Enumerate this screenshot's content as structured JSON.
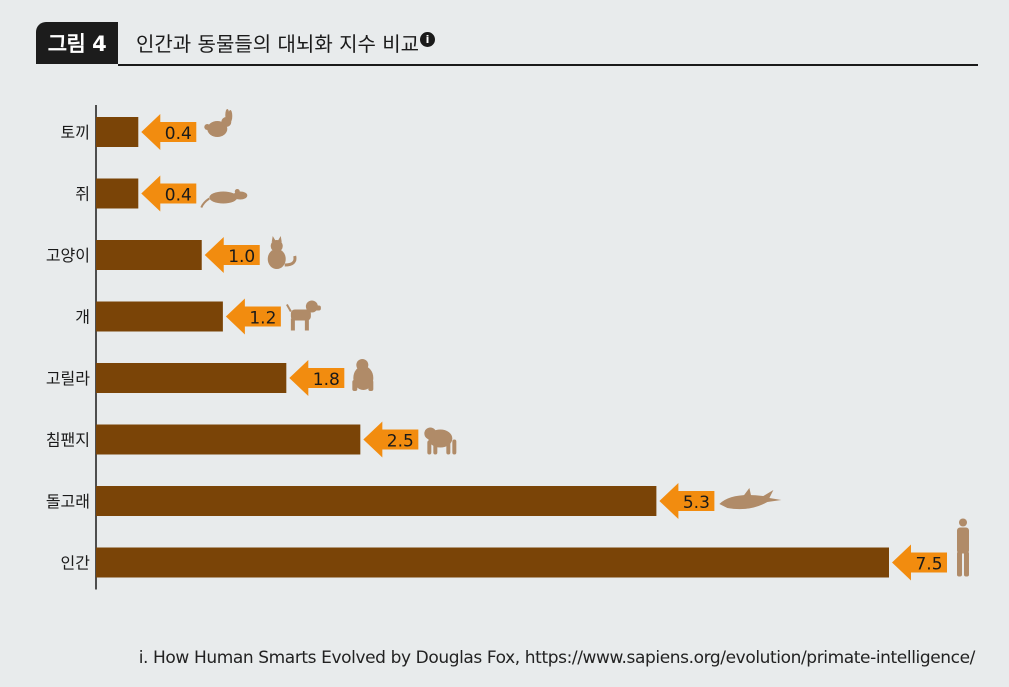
{
  "header": {
    "badge": "그림 4",
    "title": "인간과 동물들의 대뇌화 지수 비교",
    "note_marker": "i"
  },
  "chart_data": {
    "type": "bar",
    "orientation": "horizontal",
    "categories": [
      "토끼",
      "쥐",
      "고양이",
      "개",
      "고릴라",
      "침팬지",
      "돌고래",
      "인간"
    ],
    "values": [
      0.4,
      0.4,
      1.0,
      1.2,
      1.8,
      2.5,
      5.3,
      7.5
    ],
    "data_labels": [
      "0.4",
      "0.4",
      "1.0",
      "1.2",
      "1.8",
      "2.5",
      "5.3",
      "7.5"
    ],
    "icons": [
      "rabbit-icon",
      "rat-icon",
      "cat-icon",
      "dog-icon",
      "gorilla-icon",
      "chimpanzee-icon",
      "dolphin-icon",
      "human-icon"
    ],
    "xlim": [
      0,
      7.5
    ],
    "grid": false,
    "legend": "none",
    "colors": {
      "bar": "#7a4407",
      "label_arrow": "#f28c0f",
      "icon": "#b08b68",
      "axis": "#1a1a1a"
    }
  },
  "footnote": "i. How Human Smarts Evolved by Douglas Fox, https://www.sapiens.org/evolution/primate-intelligence/"
}
